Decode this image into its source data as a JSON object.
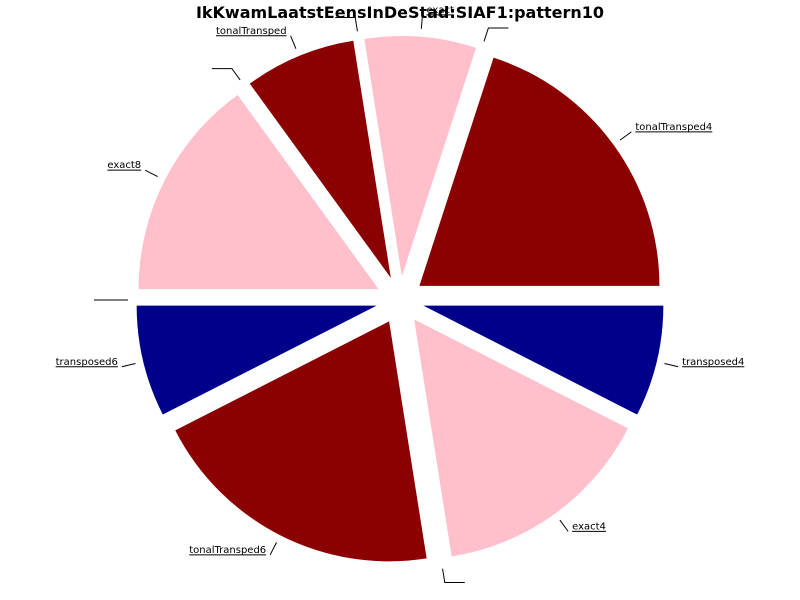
{
  "chart_data": {
    "type": "pie",
    "title": "IkKwamLaatstEensInDeStad:SIAF1:pattern10",
    "slices": [
      {
        "label": "tonalTransped4",
        "value": 20.0,
        "color": "#8b0000"
      },
      {
        "label": "",
        "value": 0.0,
        "color": "#00008b"
      },
      {
        "label": "exact",
        "value": 7.5,
        "color": "#ffc0cb"
      },
      {
        "label": "",
        "value": 0.0,
        "color": "#8b0000"
      },
      {
        "label": "tonalTransped",
        "value": 7.5,
        "color": "#8b0000"
      },
      {
        "label": "",
        "value": 0.0,
        "color": "#ffc0cb"
      },
      {
        "label": "exact8",
        "value": 15.0,
        "color": "#ffc0cb"
      },
      {
        "label": "",
        "value": 0.0,
        "color": "#00008b"
      },
      {
        "label": "transposed6",
        "value": 7.5,
        "color": "#00008b"
      },
      {
        "label": "tonalTransped6",
        "value": 20.0,
        "color": "#8b0000"
      },
      {
        "label": "",
        "value": 0.0,
        "color": "#00008b"
      },
      {
        "label": "exact4",
        "value": 15.0,
        "color": "#ffc0cb"
      },
      {
        "label": "transposed4",
        "value": 7.5,
        "color": "#00008b"
      }
    ]
  }
}
